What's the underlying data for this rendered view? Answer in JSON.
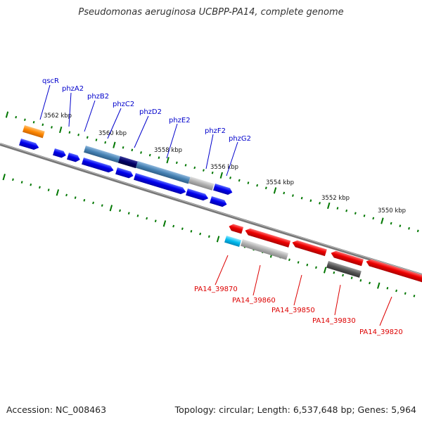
{
  "title": "Pseudomonas aeruginosa UCBPP-PA14, complete genome",
  "footer": {
    "accession": "Accession: NC_008463",
    "topology": "Topology: circular; Length: 6,537,648 bp; Genes: 5,964"
  },
  "scale_labels": [
    "3562 kbp",
    "3560 kbp",
    "3558 kbp",
    "3556 kbp",
    "3554 kbp",
    "3552 kbp",
    "3550 kbp"
  ],
  "forward_gene_labels": [
    "qscR",
    "phzA2",
    "phzB2",
    "phzC2",
    "phzD2",
    "phzE2",
    "phzF2",
    "phzG2"
  ],
  "reverse_gene_labels": [
    "PA14_39870",
    "PA14_39860",
    "PA14_39850",
    "PA14_39830",
    "PA14_39820"
  ],
  "colors": {
    "forward_label": "#0000cc",
    "reverse_label": "#dd0000",
    "gene_blue": "#0000ee",
    "gene_red": "#ee0000",
    "gene_orange": "#ff8800",
    "gene_steel": "#4682b4",
    "gene_navy": "#000066",
    "gene_gray": "#999999",
    "gene_darkgray": "#555555",
    "gene_cyan": "#00bbee",
    "tick": "#007700",
    "backbone": "#777777"
  }
}
